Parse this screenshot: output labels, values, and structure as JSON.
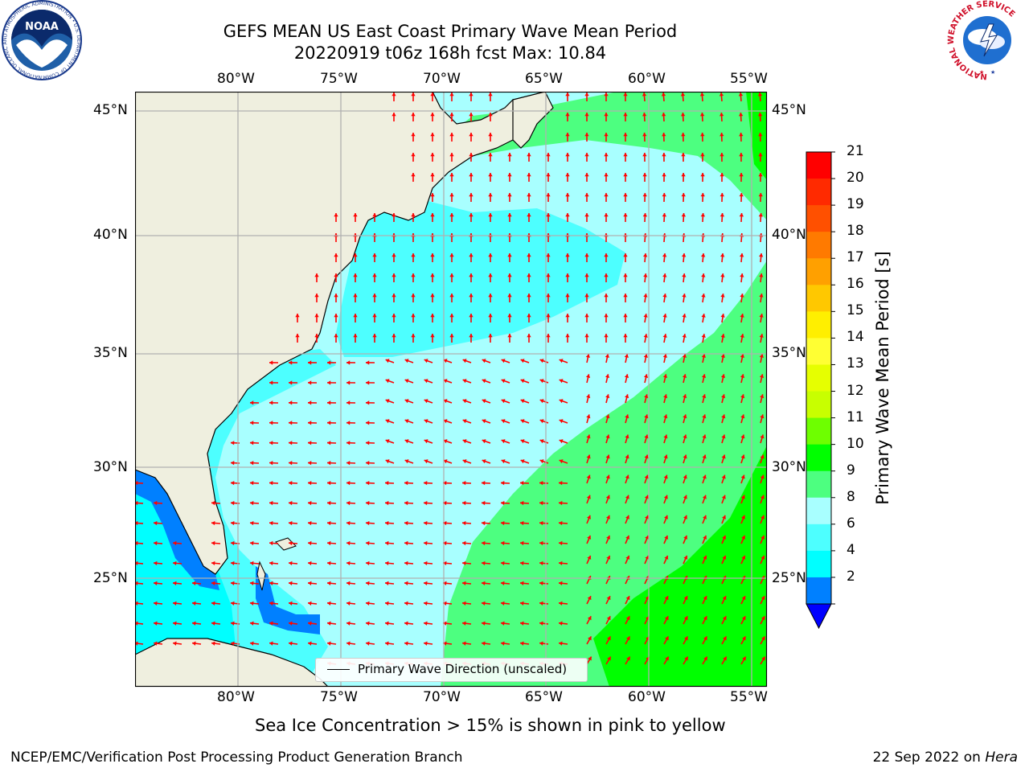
{
  "header": {
    "title_line1": "GEFS MEAN US East Coast Primary Wave Mean Period",
    "title_line2": "20220919 t06z 168h fcst   Max: 10.84"
  },
  "logos": {
    "left": "noaa-logo",
    "left_text": "NOAA",
    "left_ring_text": "NATIONAL OCEANIC AND ATMOSPHERIC ADMINISTRATION • U.S. DEPARTMENT OF COMMERCE",
    "right": "nws-logo",
    "right_ring_text": "NATIONAL WEATHER SERVICE"
  },
  "map": {
    "lon_labels": [
      "80°W",
      "75°W",
      "70°W",
      "65°W",
      "60°W",
      "55°W"
    ],
    "lat_labels": [
      "45°N",
      "40°N",
      "35°N",
      "30°N",
      "25°N"
    ],
    "legend_label": "Primary Wave Direction (unscaled)",
    "colors": {
      "land": "#efefdf",
      "period_2_4": "#0080ff",
      "period_4_6": "#00ffff",
      "period_6_8": "#4dffff",
      "period_8_9": "#a8ffff",
      "period_9_10": "#4dff80",
      "period_10_11": "#00ff00",
      "arrows": "#ff0000",
      "grid": "#b0b0b0"
    }
  },
  "colorbar": {
    "label": "Primary Wave Mean Period [s]",
    "ticks": [
      "21",
      "20",
      "19",
      "18",
      "17",
      "16",
      "15",
      "14",
      "13",
      "12",
      "11",
      "10",
      "9",
      "8",
      "6",
      "4",
      "2"
    ],
    "colors": [
      "#ff0000",
      "#ff2a00",
      "#ff5000",
      "#ff7a00",
      "#ffa000",
      "#ffc800",
      "#ffef00",
      "#ffff33",
      "#e6ff00",
      "#c8ff00",
      "#6eff00",
      "#00ff00",
      "#4dff80",
      "#a8ffff",
      "#4dffff",
      "#00ffff",
      "#0080ff"
    ],
    "extend_color": "#0000ff"
  },
  "notes": {
    "sea_ice": "Sea Ice Concentration > 15% is shown in pink to yellow"
  },
  "footer": {
    "left": "NCEP/EMC/Verification Post Processing Product Generation Branch",
    "right_prefix": "22 Sep 2022 on ",
    "right_host": "Hera"
  }
}
